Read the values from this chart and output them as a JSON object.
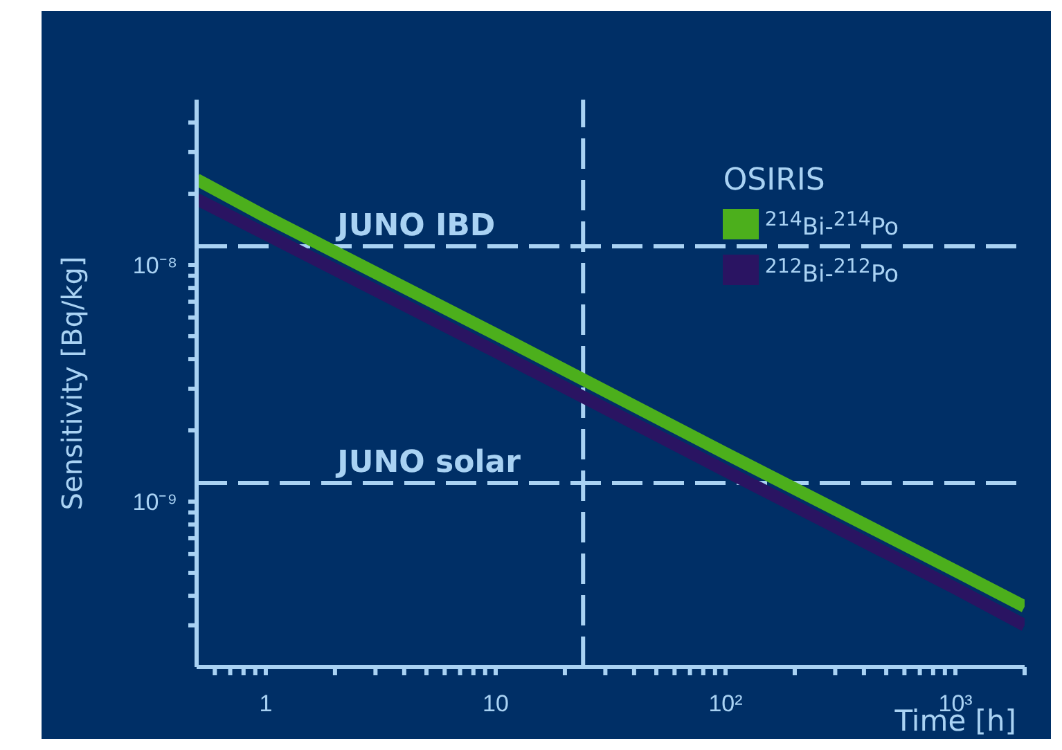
{
  "chart_data": {
    "type": "line",
    "xlabel": "Time [h]",
    "ylabel": "Sensitivity [Bq/kg]",
    "legend_title": "OSIRIS",
    "log": "xy",
    "legend": "top right",
    "marker": "none",
    "line_style": "solid",
    "xlim": [
      0.5,
      2000
    ],
    "ylim": [
      2e-10,
      5e-08
    ],
    "xticks": [
      {
        "value": 0.6,
        "label": null
      },
      {
        "value": 0.7,
        "label": null
      },
      {
        "value": 0.8,
        "label": null
      },
      {
        "value": 0.9,
        "label": null
      },
      1,
      {
        "value": 2,
        "label": null
      },
      {
        "value": 3,
        "label": null
      },
      {
        "value": 4,
        "label": null
      },
      {
        "value": 5,
        "label": null
      },
      {
        "value": 6,
        "label": null
      },
      {
        "value": 7,
        "label": null
      },
      {
        "value": 8,
        "label": null
      },
      {
        "value": 9,
        "label": null
      },
      10,
      {
        "value": 20,
        "label": null
      },
      {
        "value": 30,
        "label": null
      },
      {
        "value": 40,
        "label": null
      },
      {
        "value": 50,
        "label": null
      },
      {
        "value": 60,
        "label": null
      },
      {
        "value": 70,
        "label": null
      },
      {
        "value": 80,
        "label": null
      },
      {
        "value": 90,
        "label": null
      },
      {
        "value": 100,
        "label": "10²"
      },
      {
        "value": 200,
        "label": null
      },
      {
        "value": 300,
        "label": null
      },
      {
        "value": 400,
        "label": null
      },
      {
        "value": 500,
        "label": null
      },
      {
        "value": 600,
        "label": null
      },
      {
        "value": 700,
        "label": null
      },
      {
        "value": 800,
        "label": null
      },
      {
        "value": 900,
        "label": null
      },
      {
        "value": 1000,
        "label": "10³"
      },
      {
        "value": 2000,
        "label": null
      }
    ],
    "yticks": [
      {
        "value": 3e-10,
        "label": null
      },
      {
        "value": 4e-10,
        "label": null
      },
      {
        "value": 5e-10,
        "label": null
      },
      {
        "value": 6e-10,
        "label": null
      },
      {
        "value": 7e-10,
        "label": null
      },
      {
        "value": 8e-10,
        "label": null
      },
      {
        "value": 9e-10,
        "label": null
      },
      {
        "value": 1e-09,
        "label": "10⁻⁹"
      },
      {
        "value": 2e-09,
        "label": null
      },
      {
        "value": 3e-09,
        "label": null
      },
      {
        "value": 4e-09,
        "label": null
      },
      {
        "value": 5e-09,
        "label": null
      },
      {
        "value": 6e-09,
        "label": null
      },
      {
        "value": 7e-09,
        "label": null
      },
      {
        "value": 8e-09,
        "label": null
      },
      {
        "value": 9e-09,
        "label": null
      },
      {
        "value": 1e-08,
        "label": "10⁻⁸"
      },
      {
        "value": 2e-08,
        "label": null
      },
      {
        "value": 3e-08,
        "label": null
      },
      {
        "value": 4e-08,
        "label": null
      }
    ],
    "x": [
      0.5,
      1,
      10,
      100,
      1000,
      2000
    ],
    "series": [
      {
        "name": "$^{214}$Bi-$^{214}$Po",
        "color": "#4caf1c",
        "values": [
          2.3e-08,
          1.6e-08,
          5.1e-09,
          1.6e-09,
          5.1e-10,
          3.6e-10
        ]
      },
      {
        "name": "$^{212}$Bi-$^{212}$Po",
        "color": "#2a1462",
        "values": [
          1.9e-08,
          1.35e-08,
          4.3e-09,
          1.35e-09,
          4.3e-10,
          3e-10
        ]
      }
    ],
    "ref_lines": [
      {
        "axis": "y",
        "value": 1.2e-08,
        "label": "JUNO IBD",
        "line_style": "dashed"
      },
      {
        "axis": "y",
        "value": 1.2e-09,
        "label": "JUNO solar",
        "line_style": "dashed"
      },
      {
        "axis": "x",
        "value": 24,
        "line_style": "dashed"
      }
    ]
  }
}
